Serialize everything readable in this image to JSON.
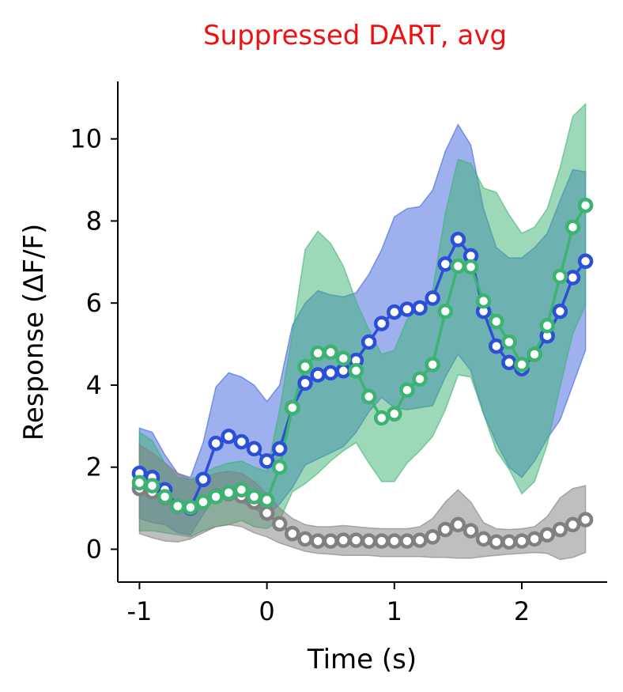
{
  "chart_data": {
    "type": "line",
    "title": "Suppressed DART, avg",
    "title_color": "#ee1111",
    "xlabel": "Time (s)",
    "ylabel": "Response (ΔF/F)",
    "xlim": [
      -1.17,
      2.67
    ],
    "ylim": [
      -0.8,
      11.4
    ],
    "xticks": [
      -1,
      0,
      1,
      2
    ],
    "xtick_labels": [
      "-1",
      "0",
      "1",
      "2"
    ],
    "yticks": [
      0,
      2,
      4,
      6,
      8,
      10
    ],
    "ytick_labels": [
      "0",
      "2",
      "4",
      "6",
      "8",
      "10"
    ],
    "grid": false,
    "x": [
      -1.0,
      -0.9,
      -0.8,
      -0.7,
      -0.6,
      -0.5,
      -0.4,
      -0.3,
      -0.2,
      -0.1,
      0.0,
      0.1,
      0.2,
      0.3,
      0.4,
      0.5,
      0.6,
      0.7,
      0.8,
      0.9,
      1.0,
      1.1,
      1.2,
      1.3,
      1.4,
      1.5,
      1.6,
      1.7,
      1.8,
      1.9,
      2.0,
      2.1,
      2.2,
      2.3,
      2.4,
      2.5
    ],
    "series": [
      {
        "color": "#2b4fd8",
        "band_color": "#3d63dd",
        "values": [
          1.85,
          1.75,
          1.45,
          1.05,
          1.0,
          1.7,
          2.58,
          2.75,
          2.62,
          2.45,
          2.15,
          2.45,
          3.45,
          4.05,
          4.25,
          4.3,
          4.35,
          4.6,
          5.05,
          5.5,
          5.78,
          5.85,
          5.88,
          6.12,
          6.95,
          7.55,
          7.15,
          5.8,
          4.95,
          4.55,
          4.4,
          4.75,
          5.2,
          5.8,
          6.62,
          7.02
        ],
        "upper": [
          2.95,
          2.85,
          2.3,
          1.85,
          1.75,
          2.6,
          3.95,
          4.3,
          4.2,
          4.0,
          3.6,
          4.0,
          5.45,
          6.0,
          6.3,
          6.2,
          6.15,
          6.25,
          6.7,
          7.3,
          8.1,
          8.3,
          8.35,
          8.75,
          9.7,
          10.35,
          9.85,
          8.3,
          7.35,
          7.1,
          7.1,
          7.35,
          7.7,
          8.5,
          9.25,
          9.2
        ],
        "lower": [
          0.75,
          0.65,
          0.6,
          0.4,
          0.35,
          0.85,
          1.3,
          1.35,
          1.15,
          1.0,
          0.8,
          1.1,
          1.5,
          2.05,
          2.2,
          2.35,
          2.5,
          2.85,
          3.35,
          3.7,
          3.45,
          3.4,
          3.45,
          3.5,
          4.2,
          4.75,
          4.35,
          3.3,
          2.6,
          2.0,
          1.75,
          2.15,
          2.7,
          3.15,
          4.0,
          4.85
        ]
      },
      {
        "color": "#3cb371",
        "band_color": "#3cb371",
        "values": [
          1.62,
          1.55,
          1.28,
          1.05,
          1.02,
          1.15,
          1.28,
          1.38,
          1.45,
          1.28,
          1.2,
          2.0,
          3.45,
          4.45,
          4.78,
          4.8,
          4.65,
          4.35,
          3.72,
          3.2,
          3.3,
          3.88,
          4.15,
          4.5,
          5.8,
          6.9,
          6.88,
          6.05,
          5.55,
          5.05,
          4.5,
          4.75,
          5.45,
          6.65,
          7.85,
          8.38
        ],
        "upper": [
          2.85,
          2.65,
          2.1,
          1.75,
          1.7,
          1.85,
          2.0,
          2.1,
          2.15,
          2.0,
          1.9,
          3.4,
          5.25,
          7.3,
          7.75,
          7.45,
          6.9,
          6.05,
          5.35,
          4.75,
          4.85,
          5.6,
          5.9,
          6.3,
          8.2,
          9.5,
          9.4,
          8.8,
          8.7,
          8.15,
          7.7,
          7.85,
          8.3,
          9.3,
          10.55,
          10.85
        ],
        "lower": [
          0.45,
          0.45,
          0.4,
          0.35,
          0.3,
          0.45,
          0.55,
          0.6,
          0.7,
          0.55,
          0.5,
          0.7,
          1.4,
          1.6,
          1.85,
          2.15,
          2.4,
          2.6,
          2.1,
          1.65,
          1.65,
          2.1,
          2.4,
          2.75,
          3.4,
          4.25,
          4.2,
          3.3,
          2.4,
          1.95,
          1.35,
          1.65,
          2.55,
          3.95,
          5.25,
          5.95
        ]
      },
      {
        "color": "#808080",
        "band_color": "#808080",
        "values": [
          1.48,
          1.4,
          1.25,
          1.05,
          1.0,
          1.15,
          1.3,
          1.35,
          1.3,
          1.15,
          0.88,
          0.62,
          0.38,
          0.25,
          0.2,
          0.2,
          0.22,
          0.22,
          0.2,
          0.2,
          0.2,
          0.2,
          0.22,
          0.3,
          0.48,
          0.6,
          0.45,
          0.25,
          0.18,
          0.18,
          0.2,
          0.25,
          0.35,
          0.48,
          0.6,
          0.72
        ],
        "upper": [
          2.55,
          2.35,
          2.1,
          1.85,
          1.7,
          1.75,
          1.85,
          1.9,
          1.85,
          1.65,
          1.35,
          1.0,
          0.75,
          0.6,
          0.55,
          0.55,
          0.58,
          0.55,
          0.52,
          0.5,
          0.5,
          0.5,
          0.55,
          0.75,
          1.15,
          1.45,
          1.15,
          0.65,
          0.5,
          0.48,
          0.5,
          0.55,
          0.8,
          1.25,
          1.48,
          1.55
        ],
        "lower": [
          0.38,
          0.28,
          0.2,
          0.18,
          0.25,
          0.4,
          0.55,
          0.6,
          0.55,
          0.4,
          0.3,
          0.15,
          0.05,
          -0.05,
          -0.1,
          -0.12,
          -0.15,
          -0.15,
          -0.15,
          -0.18,
          -0.18,
          -0.18,
          -0.18,
          -0.2,
          -0.2,
          -0.22,
          -0.22,
          -0.18,
          -0.15,
          -0.12,
          -0.1,
          -0.08,
          -0.1,
          -0.25,
          -0.2,
          -0.08
        ]
      }
    ]
  }
}
